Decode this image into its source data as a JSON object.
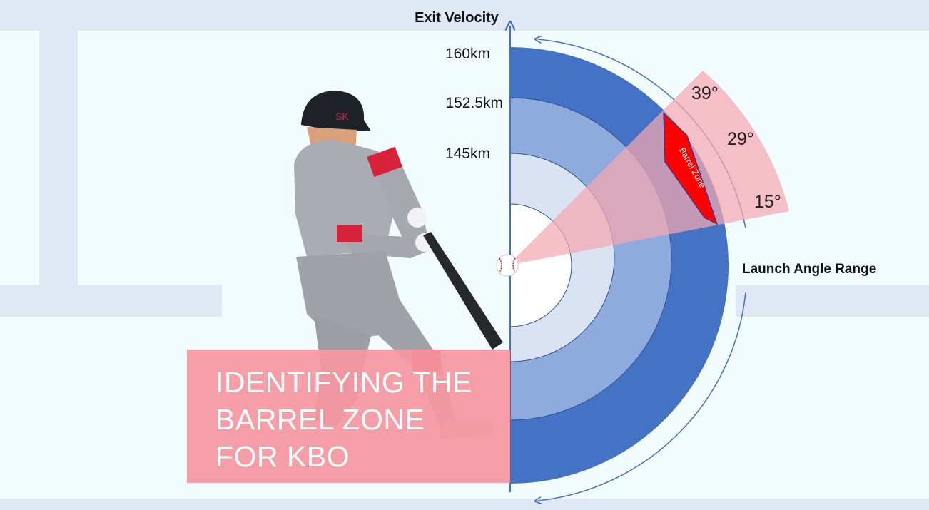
{
  "axis": {
    "exit_velocity_label": "Exit Velocity",
    "launch_angle_label": "Launch Angle Range"
  },
  "velocity_rings": [
    {
      "label": "160km",
      "color": "#4472c4"
    },
    {
      "label": "152.5km",
      "color": "#8faadc"
    },
    {
      "label": "145km",
      "color": "#dae3f3"
    }
  ],
  "angles": [
    {
      "label": "39°"
    },
    {
      "label": "29°"
    },
    {
      "label": "15°"
    }
  ],
  "barrel_zone": {
    "label": "Barrel Zone",
    "color": "#ff0000"
  },
  "title": {
    "line1": "IDENTIFYING THE",
    "line2": "BARREL ZONE",
    "line3": "FOR KBO"
  },
  "colors": {
    "wedge": "#f4a7b0",
    "title_box": "#f6969f",
    "arrow": "#4472c4"
  }
}
